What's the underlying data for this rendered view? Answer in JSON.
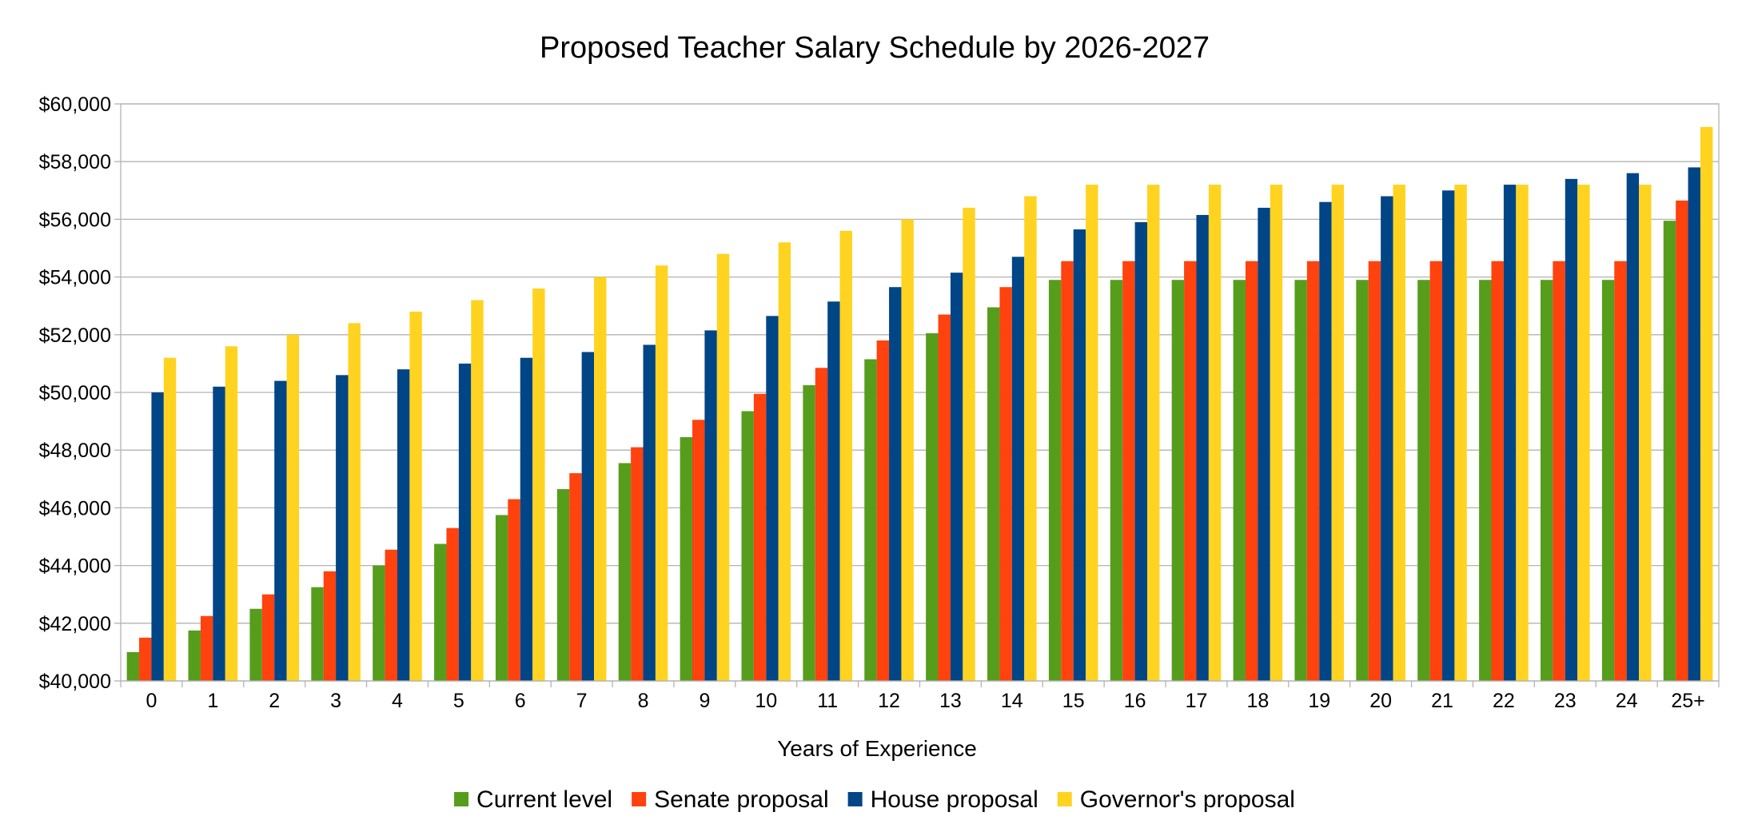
{
  "chart_data": {
    "type": "bar",
    "title": "Proposed Teacher Salary Schedule by 2026-2027",
    "xlabel": "Years of Experience",
    "ylabel": "",
    "ylim": [
      40000,
      60000
    ],
    "y_ticks": [
      40000,
      42000,
      44000,
      46000,
      48000,
      50000,
      52000,
      54000,
      56000,
      58000,
      60000
    ],
    "y_tick_labels": [
      "$40,000",
      "$42,000",
      "$44,000",
      "$46,000",
      "$48,000",
      "$50,000",
      "$52,000",
      "$54,000",
      "$56,000",
      "$58,000",
      "$60,000"
    ],
    "grid": true,
    "legend_position": "bottom",
    "categories": [
      "0",
      "1",
      "2",
      "3",
      "4",
      "5",
      "6",
      "7",
      "8",
      "9",
      "10",
      "11",
      "12",
      "13",
      "14",
      "15",
      "16",
      "17",
      "18",
      "19",
      "20",
      "21",
      "22",
      "23",
      "24",
      "25+"
    ],
    "series": [
      {
        "name": "Current level",
        "color": "#579d1c",
        "values": [
          41000,
          41750,
          42500,
          43250,
          44000,
          44750,
          45750,
          46650,
          47550,
          48450,
          49350,
          50250,
          51150,
          52050,
          52950,
          53900,
          53900,
          53900,
          53900,
          53900,
          53900,
          53900,
          53900,
          53900,
          53900,
          55950
        ]
      },
      {
        "name": "Senate proposal",
        "color": "#ff420e",
        "values": [
          41500,
          42250,
          43000,
          43800,
          44550,
          45300,
          46300,
          47200,
          48100,
          49050,
          49950,
          50850,
          51800,
          52700,
          53650,
          54550,
          54550,
          54550,
          54550,
          54550,
          54550,
          54550,
          54550,
          54550,
          54550,
          56650
        ]
      },
      {
        "name": "House proposal",
        "color": "#004586",
        "values": [
          50000,
          50200,
          50400,
          50600,
          50800,
          51000,
          51200,
          51400,
          51650,
          52150,
          52650,
          53150,
          53650,
          54150,
          54700,
          55650,
          55900,
          56150,
          56400,
          56600,
          56800,
          57000,
          57200,
          57400,
          57600,
          57800
        ]
      },
      {
        "name": "Governor's proposal",
        "color": "#ffd320",
        "values": [
          51200,
          51600,
          52000,
          52400,
          52800,
          53200,
          53600,
          54000,
          54400,
          54800,
          55200,
          55600,
          56000,
          56400,
          56800,
          57200,
          57200,
          57200,
          57200,
          57200,
          57200,
          57200,
          57200,
          57200,
          57200,
          59200
        ]
      }
    ]
  }
}
